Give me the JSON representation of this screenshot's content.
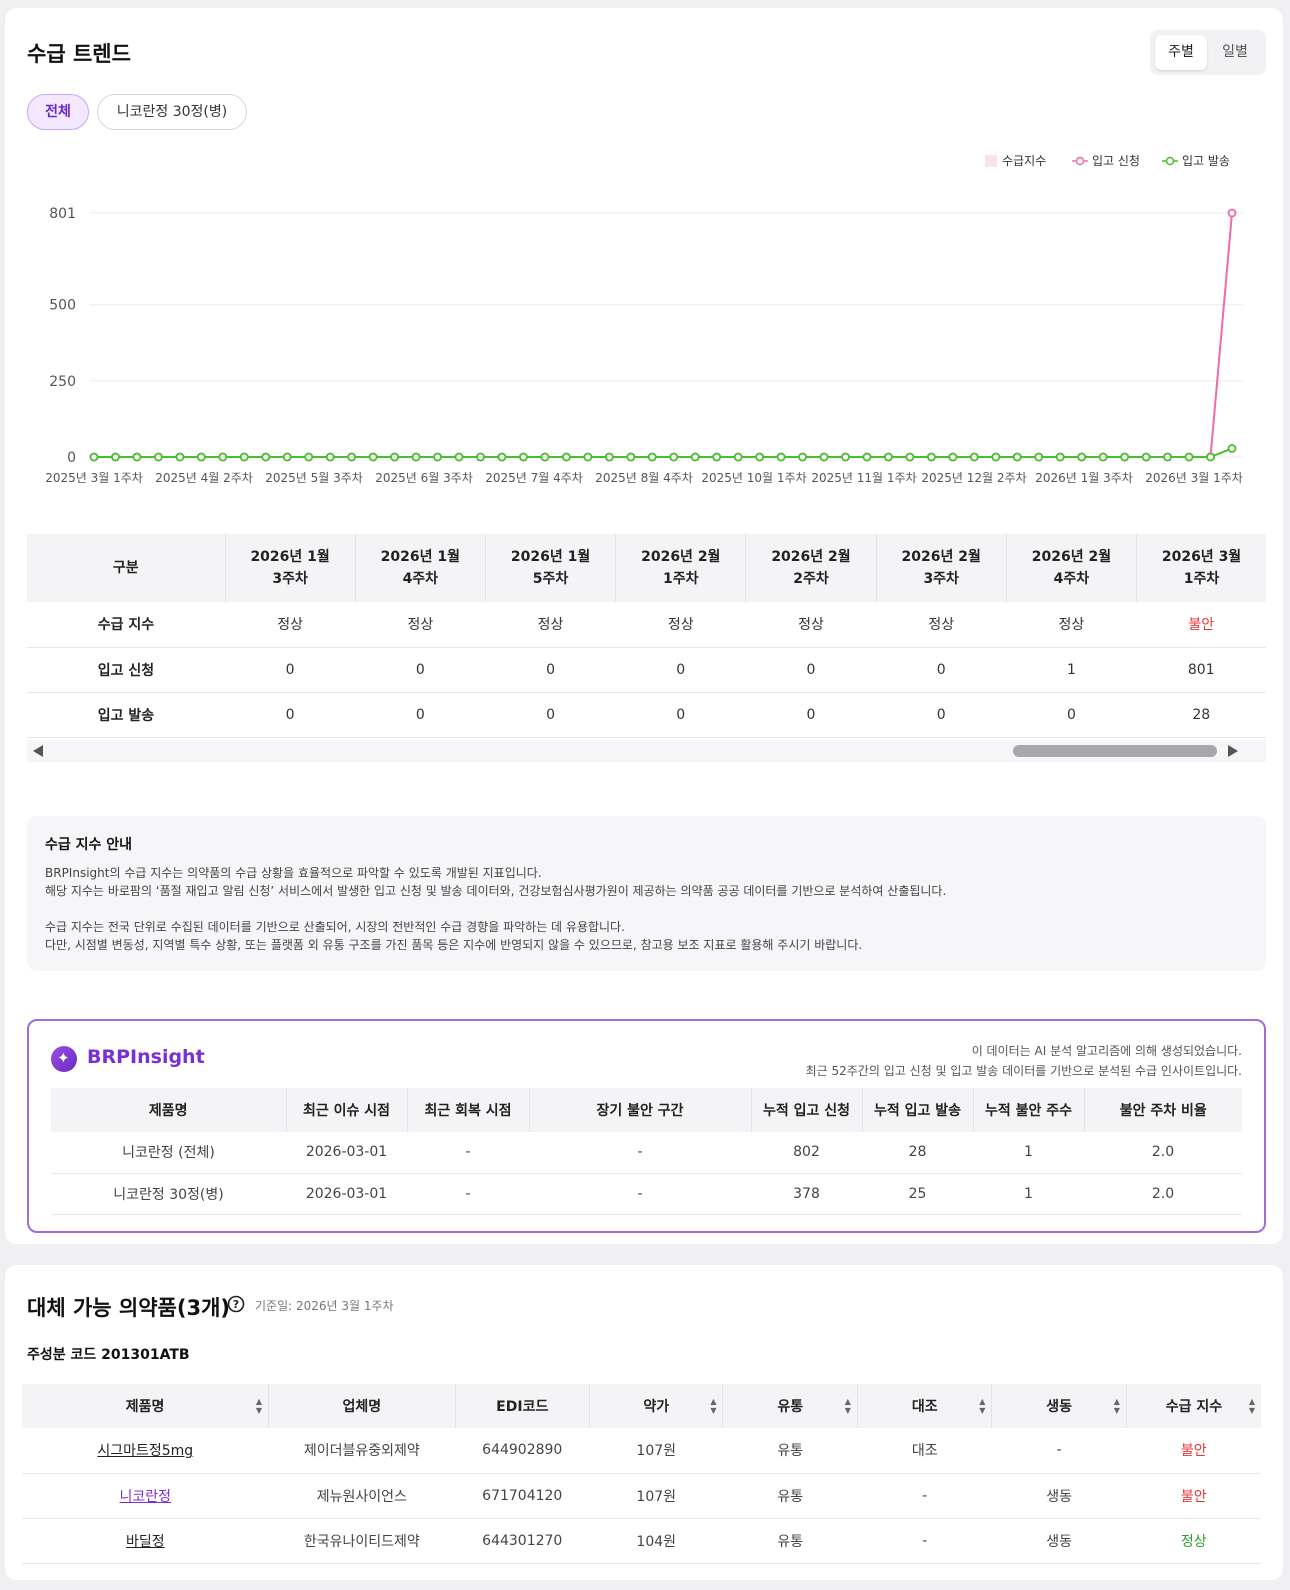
{
  "trend": {
    "title": "수급 트렌드",
    "toggle": [
      "주별",
      "일별"
    ],
    "chips": [
      "전체",
      "니코란정 30정(병)"
    ],
    "legend": [
      "수급지수",
      "입고 신청",
      "입고 발송"
    ]
  },
  "chart_data": {
    "type": "line",
    "x_ticks": [
      "2025년 3월 1주차",
      "2025년 4월 2주차",
      "2025년 5월 3주차",
      "2025년 6월 3주차",
      "2025년 7월 4주차",
      "2025년 8월 4주차",
      "2025년 10월 1주차",
      "2025년 11월 1주차",
      "2025년 12월 2주차",
      "2026년 1월 3주차",
      "2026년 3월 1주차"
    ],
    "y_ticks": [
      "801",
      "500",
      "250",
      "0"
    ],
    "ylim": [
      0,
      801
    ],
    "points_count": 54,
    "series": [
      {
        "name": "입고 신청",
        "color": "#f06aa8",
        "values": [
          0,
          0,
          0,
          0,
          0,
          0,
          0,
          0,
          0,
          0,
          0,
          0,
          0,
          0,
          0,
          0,
          0,
          0,
          0,
          0,
          0,
          0,
          0,
          0,
          0,
          0,
          0,
          0,
          0,
          0,
          0,
          0,
          0,
          0,
          0,
          0,
          0,
          0,
          0,
          0,
          0,
          0,
          0,
          0,
          0,
          0,
          0,
          0,
          0,
          0,
          0,
          0,
          1,
          801
        ]
      },
      {
        "name": "입고 발송",
        "color": "#46c02d",
        "values": [
          0,
          0,
          0,
          0,
          0,
          0,
          0,
          0,
          0,
          0,
          0,
          0,
          0,
          0,
          0,
          0,
          0,
          0,
          0,
          0,
          0,
          0,
          0,
          0,
          0,
          0,
          0,
          0,
          0,
          0,
          0,
          0,
          0,
          0,
          0,
          0,
          0,
          0,
          0,
          0,
          0,
          0,
          0,
          0,
          0,
          0,
          0,
          0,
          0,
          0,
          0,
          0,
          0,
          28
        ]
      }
    ]
  },
  "weekly_table": {
    "corner": "구분",
    "columns": [
      [
        "2026년 1월",
        "3주차"
      ],
      [
        "2026년 1월",
        "4주차"
      ],
      [
        "2026년 1월",
        "5주차"
      ],
      [
        "2026년 2월",
        "1주차"
      ],
      [
        "2026년 2월",
        "2주차"
      ],
      [
        "2026년 2월",
        "3주차"
      ],
      [
        "2026년 2월",
        "4주차"
      ],
      [
        "2026년 3월",
        "1주차"
      ]
    ],
    "rows": [
      {
        "label": "수급 지수",
        "cells": [
          "정상",
          "정상",
          "정상",
          "정상",
          "정상",
          "정상",
          "정상",
          "불안"
        ]
      },
      {
        "label": "입고 신청",
        "cells": [
          "0",
          "0",
          "0",
          "0",
          "0",
          "0",
          "1",
          "801"
        ]
      },
      {
        "label": "입고 발송",
        "cells": [
          "0",
          "0",
          "0",
          "0",
          "0",
          "0",
          "0",
          "28"
        ]
      }
    ]
  },
  "guide": {
    "title": "수급 지수 안내",
    "lines": [
      "BRPInsight의 수급 지수는 의약품의 수급 상황을 효율적으로 파악할 수 있도록 개발된 지표입니다.",
      "해당 지수는 바로팜의 ‘품절 재입고 알림 신청’ 서비스에서 발생한 입고 신청 및 발송 데이터와, 건강보험심사평가원이 제공하는 의약품 공공 데이터를 기반으로 분석하여 산출됩니다.",
      "",
      "수급 지수는 전국 단위로 수집된 데이터를 기반으로 산출되어, 시장의 전반적인 수급 경향을 파악하는 데 유용합니다.",
      "다만, 시점별 변동성, 지역별 특수 상황, 또는 플랫폼 외 유통 구조를 가진 품목 등은 지수에 반영되지 않을 수 있으므로, 참고용 보조 지표로 활용해 주시기 바랍니다."
    ]
  },
  "insight": {
    "brand": "BRPInsight",
    "note1": "이 데이터는 AI 분석 알고리즘에 의해 생성되었습니다.",
    "note2": "최근 52주간의 입고 신청 및 입고 발송 데이터를 기반으로 분석된 수급 인사이트입니다.",
    "columns": [
      "제품명",
      "최근 이슈 시점",
      "최근 회복 시점",
      "장기 불안 구간",
      "누적 입고 신청",
      "누적 입고 발송",
      "누적 불안 주수",
      "불안 주차 비율"
    ],
    "rows": [
      [
        "니코란정 (전체)",
        "2026-03-01",
        "-",
        "-",
        "802",
        "28",
        "1",
        "2.0"
      ],
      [
        "니코란정 30정(병)",
        "2026-03-01",
        "-",
        "-",
        "378",
        "25",
        "1",
        "2.0"
      ]
    ]
  },
  "alternatives": {
    "title": "대체 가능 의약품(3개)",
    "base_date": "기준일: 2026년 3월 1주차",
    "ingredient": "주성분 코드 201301ATB",
    "columns": [
      "제품명",
      "업체명",
      "EDI코드",
      "약가",
      "유통",
      "대조",
      "생동",
      "수급 지수"
    ],
    "rows": [
      [
        "시그마트정5mg",
        "제이더블유중외제약",
        "644902890",
        "107원",
        "유통",
        "대조",
        "-",
        "불안"
      ],
      [
        "니코란정",
        "제뉴원사이언스",
        "671704120",
        "107원",
        "유통",
        "-",
        "생동",
        "불안"
      ],
      [
        "바딜정",
        "한국유나이티드제약",
        "644301270",
        "104원",
        "유통",
        "-",
        "생동",
        "정상"
      ]
    ]
  }
}
